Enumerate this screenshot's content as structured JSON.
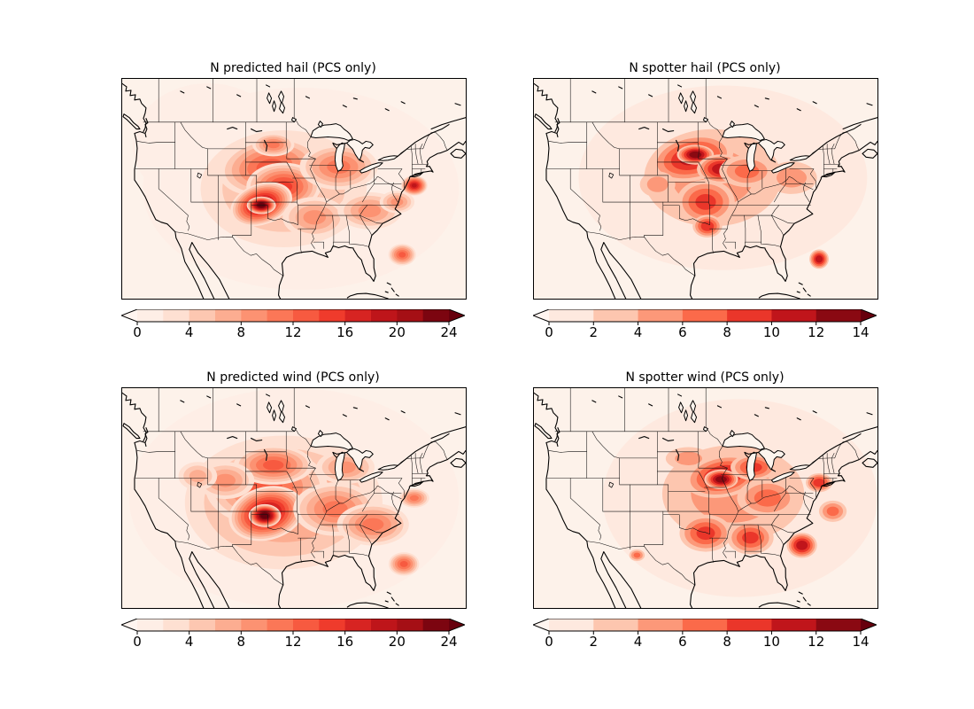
{
  "figure": {
    "background": "#ffffff",
    "frame_color": "#000000",
    "map_base_color": "#fdf2ea",
    "lake_fill": "#fdf4ed"
  },
  "colors": {
    "under": "#fff5f0",
    "over": "#67000d",
    "reds12": [
      "#feeee6",
      "#fee0d2",
      "#fdc7b1",
      "#fcad91",
      "#fc9272",
      "#fb7757",
      "#f75a40",
      "#ef3b2c",
      "#d72422",
      "#be151a",
      "#a50f15",
      "#7c0510"
    ],
    "reds7": [
      "#fee9df",
      "#fdc6af",
      "#fc9879",
      "#fb6a4a",
      "#ea362a",
      "#c0151b",
      "#8a0912"
    ]
  },
  "chart_data": [
    {
      "type": "heatmap",
      "subtype": "filled-contour-map",
      "region": "CONUS",
      "title": "N predicted hail (PCS only)",
      "palette": "reds12",
      "levels": {
        "min": 0,
        "max": 24,
        "step": 2
      },
      "colorbar_ticks": [
        0,
        4,
        8,
        12,
        16,
        20,
        24
      ],
      "colorbar_extend": "both",
      "field_blobs": [
        {
          "flat": 0,
          "cx": 0.52,
          "cy": 0.5,
          "rx": 0.46,
          "ry": 0.46
        },
        {
          "flat": 0,
          "cx": 0.25,
          "cy": 0.3,
          "rx": 0.22,
          "ry": 0.28
        },
        {
          "cx": 0.47,
          "cy": 0.5,
          "rx": 0.3,
          "ry": 0.33,
          "peak": 6
        },
        {
          "cx": 0.43,
          "cy": 0.4,
          "rx": 0.17,
          "ry": 0.15,
          "peak": 12,
          "rot": -8
        },
        {
          "cx": 0.44,
          "cy": 0.3,
          "rx": 0.07,
          "ry": 0.06,
          "peak": 10
        },
        {
          "cx": 0.47,
          "cy": 0.49,
          "rx": 0.12,
          "ry": 0.12,
          "peak": 14
        },
        {
          "cx": 0.405,
          "cy": 0.57,
          "rx": 0.1,
          "ry": 0.1,
          "peak": 20,
          "rot": -20
        },
        {
          "cx": 0.405,
          "cy": 0.575,
          "rx": 0.045,
          "ry": 0.042,
          "peak": 26
        },
        {
          "cx": 0.63,
          "cy": 0.4,
          "rx": 0.13,
          "ry": 0.12,
          "peak": 10
        },
        {
          "cx": 0.56,
          "cy": 0.63,
          "rx": 0.11,
          "ry": 0.11,
          "peak": 8
        },
        {
          "cx": 0.72,
          "cy": 0.6,
          "rx": 0.11,
          "ry": 0.1,
          "peak": 8
        },
        {
          "cx": 0.85,
          "cy": 0.485,
          "rx": 0.042,
          "ry": 0.05,
          "peak": 18
        },
        {
          "cx": 0.8,
          "cy": 0.56,
          "rx": 0.06,
          "ry": 0.06,
          "peak": 8
        },
        {
          "cx": 0.815,
          "cy": 0.8,
          "rx": 0.045,
          "ry": 0.055,
          "peak": 12
        }
      ]
    },
    {
      "type": "heatmap",
      "subtype": "filled-contour-map",
      "region": "CONUS",
      "title": "N spotter hail (PCS only)",
      "palette": "reds7",
      "levels": {
        "min": 0,
        "max": 14,
        "step": 2
      },
      "colorbar_ticks": [
        0,
        2,
        4,
        6,
        8,
        10,
        12,
        14
      ],
      "colorbar_extend": "both",
      "field_blobs": [
        {
          "flat": 0,
          "cx": 0.55,
          "cy": 0.45,
          "rx": 0.42,
          "ry": 0.42
        },
        {
          "cx": 0.52,
          "cy": 0.45,
          "rx": 0.27,
          "ry": 0.3,
          "peak": 4
        },
        {
          "cx": 0.46,
          "cy": 0.36,
          "rx": 0.14,
          "ry": 0.12,
          "peak": 10,
          "rot": -12
        },
        {
          "cx": 0.47,
          "cy": 0.345,
          "rx": 0.06,
          "ry": 0.05,
          "peak": 13
        },
        {
          "cx": 0.545,
          "cy": 0.41,
          "rx": 0.08,
          "ry": 0.075,
          "peak": 11
        },
        {
          "cx": 0.5,
          "cy": 0.56,
          "rx": 0.1,
          "ry": 0.12,
          "peak": 8
        },
        {
          "cx": 0.505,
          "cy": 0.67,
          "rx": 0.05,
          "ry": 0.06,
          "peak": 9
        },
        {
          "cx": 0.62,
          "cy": 0.42,
          "rx": 0.1,
          "ry": 0.09,
          "peak": 6
        },
        {
          "cx": 0.75,
          "cy": 0.45,
          "rx": 0.1,
          "ry": 0.1,
          "peak": 4
        },
        {
          "cx": 0.36,
          "cy": 0.48,
          "rx": 0.07,
          "ry": 0.08,
          "peak": 4
        },
        {
          "cx": 0.83,
          "cy": 0.82,
          "rx": 0.032,
          "ry": 0.05,
          "peak": 11
        }
      ]
    },
    {
      "type": "heatmap",
      "subtype": "filled-contour-map",
      "region": "CONUS",
      "title": "N predicted wind (PCS only)",
      "palette": "reds12",
      "levels": {
        "min": 0,
        "max": 24,
        "step": 2
      },
      "colorbar_ticks": [
        0,
        4,
        8,
        12,
        16,
        20,
        24
      ],
      "colorbar_extend": "both",
      "field_blobs": [
        {
          "flat": 0,
          "cx": 0.5,
          "cy": 0.5,
          "rx": 0.48,
          "ry": 0.5
        },
        {
          "cx": 0.47,
          "cy": 0.52,
          "rx": 0.34,
          "ry": 0.36,
          "peak": 8
        },
        {
          "cx": 0.42,
          "cy": 0.45,
          "rx": 0.2,
          "ry": 0.2,
          "peak": 12
        },
        {
          "cx": 0.44,
          "cy": 0.35,
          "rx": 0.13,
          "ry": 0.1,
          "peak": 12
        },
        {
          "cx": 0.3,
          "cy": 0.42,
          "rx": 0.1,
          "ry": 0.1,
          "peak": 8
        },
        {
          "cx": 0.22,
          "cy": 0.4,
          "rx": 0.07,
          "ry": 0.08,
          "peak": 6
        },
        {
          "cx": 0.42,
          "cy": 0.57,
          "rx": 0.12,
          "ry": 0.13,
          "peak": 20,
          "rot": -15
        },
        {
          "cx": 0.415,
          "cy": 0.58,
          "rx": 0.05,
          "ry": 0.055,
          "peak": 26
        },
        {
          "cx": 0.62,
          "cy": 0.55,
          "rx": 0.14,
          "ry": 0.14,
          "peak": 10
        },
        {
          "cx": 0.65,
          "cy": 0.36,
          "rx": 0.1,
          "ry": 0.09,
          "peak": 8
        },
        {
          "cx": 0.73,
          "cy": 0.62,
          "rx": 0.12,
          "ry": 0.11,
          "peak": 10
        },
        {
          "cx": 0.85,
          "cy": 0.5,
          "rx": 0.05,
          "ry": 0.05,
          "peak": 10
        },
        {
          "cx": 0.82,
          "cy": 0.8,
          "rx": 0.05,
          "ry": 0.06,
          "peak": 12
        }
      ]
    },
    {
      "type": "heatmap",
      "subtype": "filled-contour-map",
      "region": "CONUS",
      "title": "N spotter wind (PCS only)",
      "palette": "reds7",
      "levels": {
        "min": 0,
        "max": 14,
        "step": 2
      },
      "colorbar_ticks": [
        0,
        2,
        4,
        6,
        8,
        10,
        12,
        14
      ],
      "colorbar_extend": "both",
      "field_blobs": [
        {
          "flat": 0,
          "cx": 0.6,
          "cy": 0.5,
          "rx": 0.4,
          "ry": 0.45
        },
        {
          "cx": 0.58,
          "cy": 0.48,
          "rx": 0.28,
          "ry": 0.3,
          "peak": 4
        },
        {
          "cx": 0.45,
          "cy": 0.32,
          "rx": 0.09,
          "ry": 0.07,
          "peak": 4
        },
        {
          "cx": 0.55,
          "cy": 0.4,
          "rx": 0.13,
          "ry": 0.11,
          "peak": 10,
          "rot": -10
        },
        {
          "cx": 0.545,
          "cy": 0.415,
          "rx": 0.055,
          "ry": 0.05,
          "peak": 13
        },
        {
          "cx": 0.64,
          "cy": 0.36,
          "rx": 0.08,
          "ry": 0.07,
          "peak": 8
        },
        {
          "cx": 0.68,
          "cy": 0.5,
          "rx": 0.11,
          "ry": 0.11,
          "peak": 6
        },
        {
          "cx": 0.5,
          "cy": 0.66,
          "rx": 0.09,
          "ry": 0.1,
          "peak": 8
        },
        {
          "cx": 0.63,
          "cy": 0.68,
          "rx": 0.08,
          "ry": 0.09,
          "peak": 8
        },
        {
          "cx": 0.78,
          "cy": 0.715,
          "rx": 0.05,
          "ry": 0.065,
          "peak": 11
        },
        {
          "cx": 0.83,
          "cy": 0.43,
          "rx": 0.045,
          "ry": 0.05,
          "peak": 9
        },
        {
          "cx": 0.87,
          "cy": 0.56,
          "rx": 0.05,
          "ry": 0.06,
          "peak": 6
        },
        {
          "cx": 0.3,
          "cy": 0.76,
          "rx": 0.028,
          "ry": 0.033,
          "peak": 6
        }
      ]
    }
  ]
}
